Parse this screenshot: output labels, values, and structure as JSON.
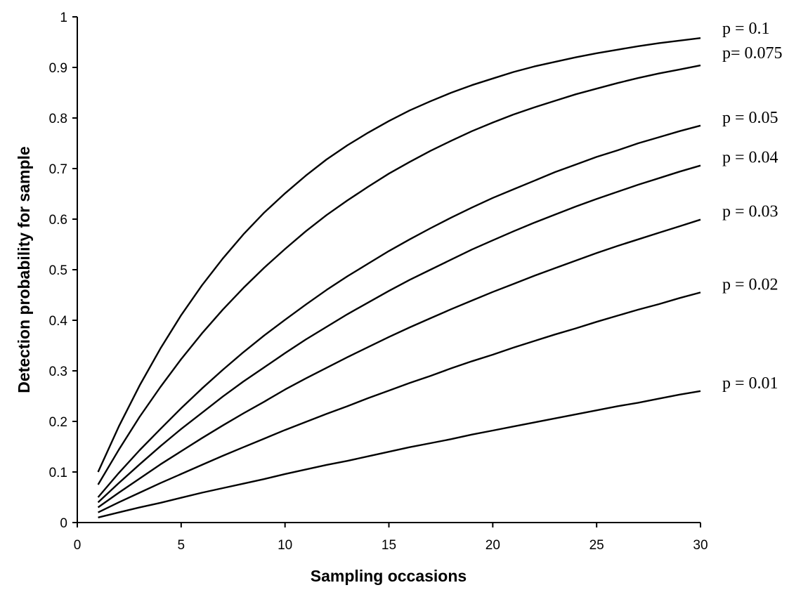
{
  "chart_data": {
    "type": "line",
    "xlabel": "Sampling occasions",
    "ylabel": "Detection probability for sample",
    "xlim": [
      0,
      30
    ],
    "ylim": [
      0,
      1
    ],
    "x_ticks": [
      "0",
      "5",
      "10",
      "15",
      "20",
      "25",
      "30"
    ],
    "y_ticks": [
      "0",
      "0.1",
      "0.2",
      "0.3",
      "0.4",
      "0.5",
      "0.6",
      "0.7",
      "0.8",
      "0.9",
      "1"
    ],
    "grid": false,
    "legend": "none",
    "line_color": "#000000",
    "x": [
      1,
      2,
      3,
      4,
      5,
      6,
      7,
      8,
      9,
      10,
      11,
      12,
      13,
      14,
      15,
      16,
      17,
      18,
      19,
      20,
      21,
      22,
      23,
      24,
      25,
      26,
      27,
      28,
      29,
      30
    ],
    "series": [
      {
        "name": "p = 0.1",
        "values": [
          0.1,
          0.19,
          0.271,
          0.344,
          0.41,
          0.469,
          0.522,
          0.57,
          0.613,
          0.651,
          0.686,
          0.718,
          0.746,
          0.771,
          0.794,
          0.815,
          0.833,
          0.85,
          0.865,
          0.878,
          0.891,
          0.902,
          0.911,
          0.92,
          0.928,
          0.935,
          0.942,
          0.948,
          0.953,
          0.958
        ]
      },
      {
        "name": "p= 0.075",
        "values": [
          0.075,
          0.144,
          0.209,
          0.268,
          0.323,
          0.374,
          0.421,
          0.464,
          0.504,
          0.541,
          0.576,
          0.608,
          0.637,
          0.664,
          0.69,
          0.713,
          0.735,
          0.755,
          0.774,
          0.791,
          0.807,
          0.821,
          0.834,
          0.847,
          0.858,
          0.869,
          0.879,
          0.888,
          0.896,
          0.904
        ]
      },
      {
        "name": "p = 0.05",
        "values": [
          0.05,
          0.098,
          0.143,
          0.185,
          0.226,
          0.265,
          0.302,
          0.337,
          0.37,
          0.401,
          0.431,
          0.46,
          0.487,
          0.512,
          0.537,
          0.56,
          0.582,
          0.603,
          0.623,
          0.642,
          0.659,
          0.676,
          0.693,
          0.708,
          0.723,
          0.736,
          0.75,
          0.762,
          0.774,
          0.785
        ]
      },
      {
        "name": "p = 0.04",
        "values": [
          0.04,
          0.078,
          0.115,
          0.151,
          0.185,
          0.217,
          0.249,
          0.279,
          0.307,
          0.335,
          0.362,
          0.387,
          0.412,
          0.435,
          0.458,
          0.48,
          0.5,
          0.52,
          0.54,
          0.558,
          0.576,
          0.593,
          0.609,
          0.625,
          0.64,
          0.654,
          0.668,
          0.681,
          0.694,
          0.706
        ]
      },
      {
        "name": "p = 0.03",
        "values": [
          0.03,
          0.059,
          0.087,
          0.115,
          0.141,
          0.167,
          0.192,
          0.216,
          0.239,
          0.263,
          0.285,
          0.306,
          0.327,
          0.347,
          0.367,
          0.386,
          0.404,
          0.422,
          0.439,
          0.456,
          0.472,
          0.488,
          0.503,
          0.518,
          0.533,
          0.547,
          0.56,
          0.573,
          0.586,
          0.599
        ]
      },
      {
        "name": "p = 0.02",
        "values": [
          0.02,
          0.04,
          0.059,
          0.078,
          0.096,
          0.114,
          0.132,
          0.149,
          0.166,
          0.183,
          0.199,
          0.215,
          0.23,
          0.246,
          0.261,
          0.276,
          0.29,
          0.305,
          0.319,
          0.332,
          0.346,
          0.359,
          0.372,
          0.384,
          0.397,
          0.409,
          0.421,
          0.432,
          0.444,
          0.455
        ]
      },
      {
        "name": "p = 0.01",
        "values": [
          0.01,
          0.02,
          0.03,
          0.039,
          0.049,
          0.059,
          0.068,
          0.077,
          0.086,
          0.096,
          0.105,
          0.114,
          0.122,
          0.131,
          0.14,
          0.149,
          0.157,
          0.165,
          0.174,
          0.182,
          0.19,
          0.198,
          0.206,
          0.214,
          0.222,
          0.23,
          0.237,
          0.245,
          0.253,
          0.26
        ]
      }
    ]
  }
}
